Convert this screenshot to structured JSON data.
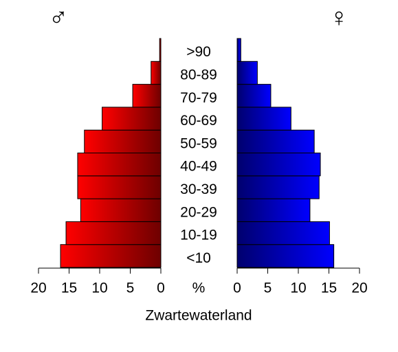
{
  "chart_data": {
    "type": "pyramid",
    "title": "Zwartewaterland",
    "xlabel": "%",
    "categories": [
      "<10",
      "10-19",
      "20-29",
      "30-39",
      "40-49",
      "50-59",
      "60-69",
      "70-79",
      "80-89",
      ">90"
    ],
    "series": [
      {
        "name": "♂",
        "color": "#ff0000",
        "values": [
          16.4,
          15.5,
          13.1,
          13.6,
          13.6,
          12.5,
          9.6,
          4.6,
          1.6,
          0.2
        ]
      },
      {
        "name": "♀",
        "color": "#0000ff",
        "values": [
          15.8,
          15.1,
          11.9,
          13.4,
          13.6,
          12.6,
          8.8,
          5.5,
          3.3,
          0.6
        ]
      }
    ],
    "xlim": [
      0,
      20
    ],
    "xticks": [
      0,
      5,
      10,
      15,
      20
    ]
  }
}
